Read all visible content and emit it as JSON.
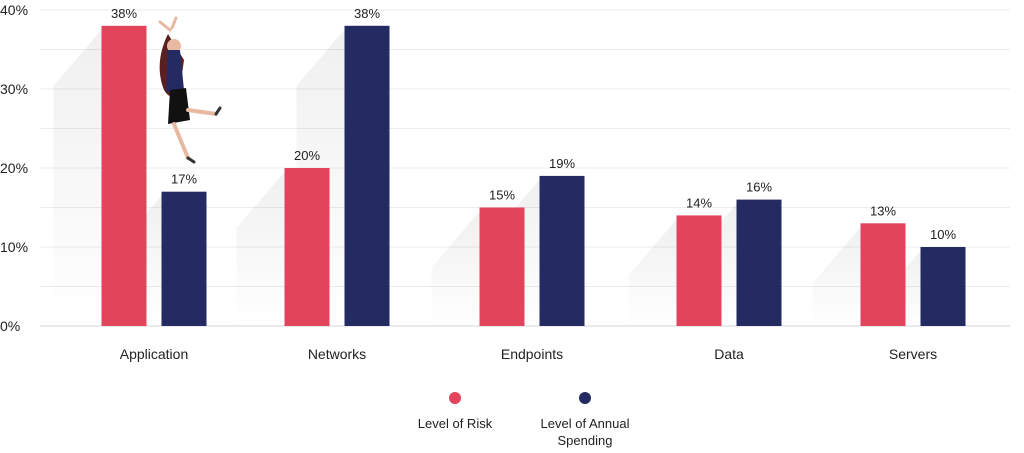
{
  "chart_data": {
    "type": "bar",
    "categories": [
      "Application",
      "Networks",
      "Endpoints",
      "Data",
      "Servers"
    ],
    "series": [
      {
        "name": "Level of Risk",
        "values": [
          38,
          20,
          15,
          14,
          13
        ],
        "labels": [
          "38%",
          "20%",
          "15%",
          "14%",
          "13%"
        ],
        "color": "#E2445C"
      },
      {
        "name": "Level of Annual Spending",
        "values": [
          17,
          38,
          19,
          16,
          10
        ],
        "labels": [
          "17%",
          "38%",
          "19%",
          "16%",
          "10%"
        ],
        "color": "#242A62"
      }
    ],
    "ylim": [
      0,
      40
    ],
    "yticks": [
      "0%",
      "10%",
      "20%",
      "30%",
      "40%"
    ],
    "grid": true,
    "legend_position": "bottom-center"
  },
  "legend": {
    "risk_label": "Level of Risk",
    "spending_label_line1": "Level of Annual",
    "spending_label_line2": "Spending"
  },
  "decoration": {
    "illustration": "jumping-woman-illustration"
  }
}
